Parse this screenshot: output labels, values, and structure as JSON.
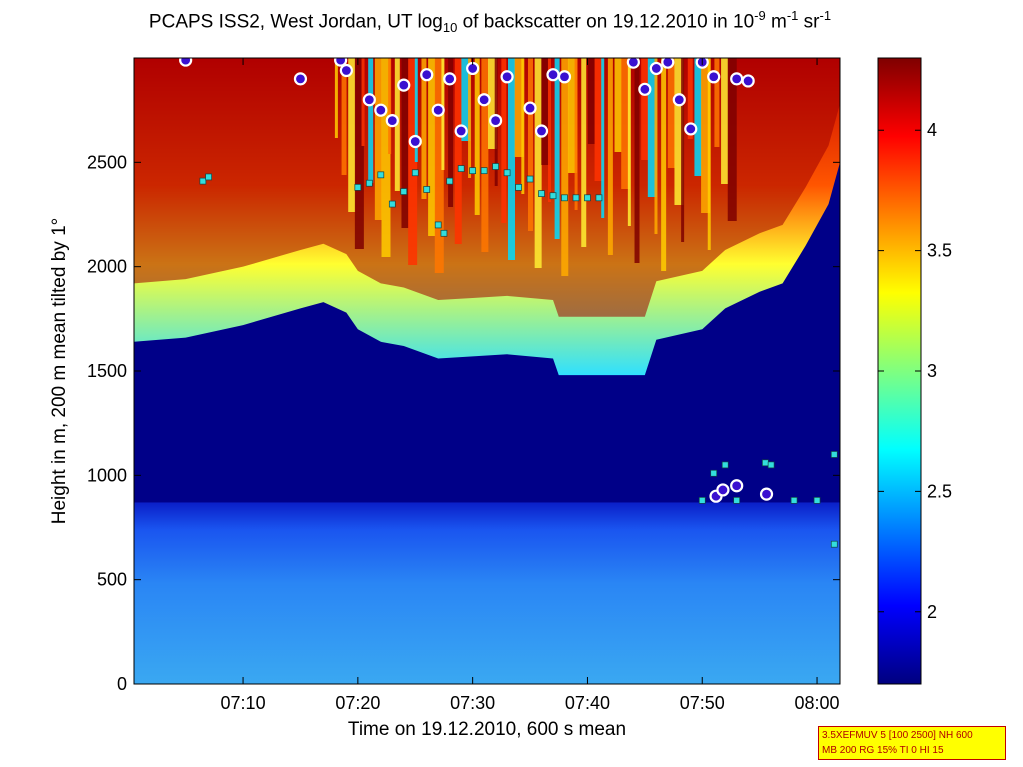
{
  "header": {
    "title_part1": "PCAPS ISS2, West Jordan, UT log",
    "title_sub": "10",
    "title_part2": " of backscatter on 19.12.2010 in 10",
    "title_sup1": "-9",
    "title_part3": " m",
    "title_sup2": "-1",
    "title_part4": " sr",
    "title_sup3": "-1"
  },
  "footnote": {
    "line1": "3.5XEFMUV 5 [100 2500] NH 600",
    "line2": "MB 200 RG 15% TI 0 HI 15"
  },
  "chart_data": {
    "type": "heatmap",
    "xlabel": "Time on 19.12.2010, 600 s mean",
    "ylabel": "Height in m, 200 m mean tilted by 1°",
    "x_ticks": [
      "07:10",
      "07:20",
      "07:30",
      "07:40",
      "07:50",
      "08:00"
    ],
    "x_tick_minutes": [
      10,
      20,
      30,
      40,
      50,
      60
    ],
    "xlim_minutes": [
      0.5,
      62
    ],
    "y_ticks": [
      "0",
      "500",
      "1000",
      "1500",
      "2000",
      "2500"
    ],
    "y_tick_values": [
      0,
      500,
      1000,
      1500,
      2000,
      2500
    ],
    "ylim": [
      0,
      3000
    ],
    "colorbar": {
      "colormap": "jet",
      "range": [
        1.7,
        4.3
      ],
      "ticks": [
        "2",
        "2.5",
        "3",
        "3.5",
        "4"
      ],
      "tick_values": [
        2,
        2.5,
        3,
        3.5,
        4
      ]
    },
    "aerosol_layer_top_m": [
      [
        0.5,
        1640
      ],
      [
        5,
        1660
      ],
      [
        10,
        1720
      ],
      [
        15,
        1800
      ],
      [
        17,
        1830
      ],
      [
        19,
        1780
      ],
      [
        20,
        1700
      ],
      [
        22,
        1640
      ],
      [
        24,
        1620
      ],
      [
        27,
        1560
      ],
      [
        30,
        1570
      ],
      [
        33,
        1580
      ],
      [
        37,
        1560
      ],
      [
        37.5,
        1480
      ],
      [
        45,
        1480
      ],
      [
        46,
        1650
      ],
      [
        50,
        1700
      ],
      [
        52,
        1800
      ],
      [
        55,
        1880
      ],
      [
        57,
        1920
      ],
      [
        59,
        2100
      ],
      [
        61,
        2300
      ],
      [
        62,
        2500
      ]
    ],
    "cloud_top_points_m": [
      [
        5,
        2990
      ],
      [
        15,
        2900
      ],
      [
        18.5,
        2990
      ],
      [
        19,
        2940
      ],
      [
        21,
        2800
      ],
      [
        22,
        2750
      ],
      [
        23,
        2700
      ],
      [
        24,
        2870
      ],
      [
        25,
        2600
      ],
      [
        26,
        2920
      ],
      [
        27,
        2750
      ],
      [
        28,
        2900
      ],
      [
        29,
        2650
      ],
      [
        30,
        2950
      ],
      [
        31,
        2800
      ],
      [
        32,
        2700
      ],
      [
        33,
        2910
      ],
      [
        35,
        2760
      ],
      [
        36,
        2650
      ],
      [
        37,
        2920
      ],
      [
        38,
        2910
      ],
      [
        44,
        2980
      ],
      [
        45,
        2850
      ],
      [
        46,
        2950
      ],
      [
        47,
        2980
      ],
      [
        48,
        2800
      ],
      [
        49,
        2660
      ],
      [
        50,
        2980
      ],
      [
        51,
        2910
      ],
      [
        53,
        2900
      ],
      [
        54,
        2890
      ],
      [
        51.2,
        900
      ],
      [
        51.8,
        930
      ],
      [
        53,
        950
      ],
      [
        55.6,
        910
      ]
    ],
    "layer_height_points_m": [
      [
        6.5,
        2410
      ],
      [
        7,
        2430
      ],
      [
        20,
        2380
      ],
      [
        21,
        2400
      ],
      [
        22,
        2440
      ],
      [
        23,
        2300
      ],
      [
        24,
        2360
      ],
      [
        25,
        2450
      ],
      [
        26,
        2370
      ],
      [
        27,
        2200
      ],
      [
        27.5,
        2160
      ],
      [
        28,
        2410
      ],
      [
        29,
        2470
      ],
      [
        30,
        2460
      ],
      [
        31,
        2460
      ],
      [
        32,
        2480
      ],
      [
        33,
        2450
      ],
      [
        34,
        2380
      ],
      [
        35,
        2420
      ],
      [
        36,
        2350
      ],
      [
        37,
        2340
      ],
      [
        38,
        2330
      ],
      [
        39,
        2330
      ],
      [
        40,
        2330
      ],
      [
        41,
        2330
      ],
      [
        50,
        880
      ],
      [
        51,
        1010
      ],
      [
        52,
        1050
      ],
      [
        53,
        880
      ],
      [
        55.5,
        1060
      ],
      [
        56,
        1050
      ],
      [
        58,
        880
      ],
      [
        60,
        880
      ],
      [
        61.5,
        1100
      ],
      [
        61.5,
        670
      ]
    ]
  }
}
